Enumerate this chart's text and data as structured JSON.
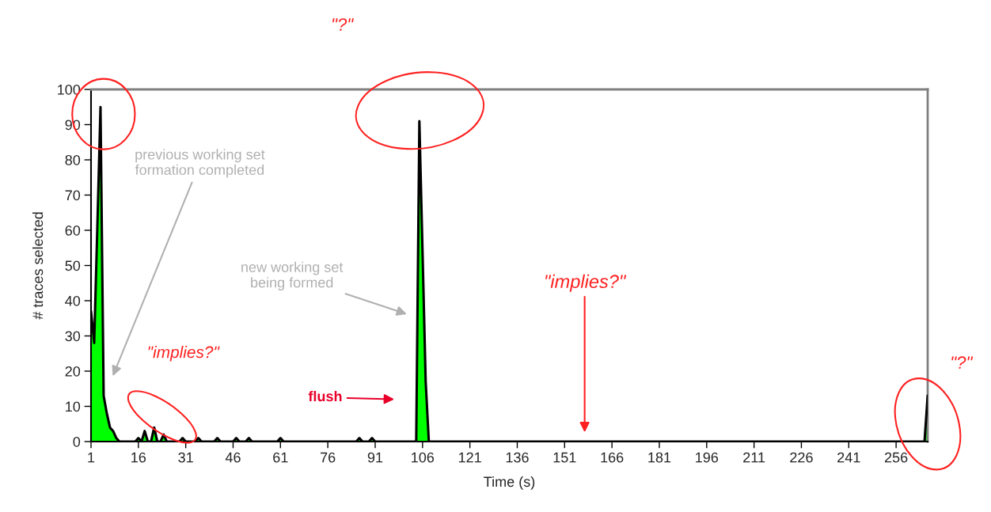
{
  "chart_data": {
    "type": "area",
    "xlabel": "Time (s)",
    "ylabel": "# traces selected",
    "x": [
      1,
      2,
      3,
      4,
      5,
      6,
      7,
      8,
      9,
      10,
      15,
      16,
      17,
      18,
      19,
      20,
      21,
      22,
      23,
      24,
      25,
      29,
      30,
      31,
      34,
      35,
      36,
      40,
      41,
      42,
      46,
      47,
      48,
      50,
      51,
      52,
      60,
      61,
      62,
      85,
      86,
      87,
      89,
      90,
      91,
      104,
      105,
      107,
      108,
      265,
      266
    ],
    "series": [
      {
        "color": "#00ff00",
        "values": [
          37,
          28,
          61,
          95,
          13,
          8,
          4,
          3,
          1,
          0,
          0,
          1,
          0,
          3,
          0,
          0,
          4,
          0,
          0,
          2,
          0,
          0,
          1,
          0,
          0,
          1,
          0,
          0,
          1,
          0,
          0,
          1,
          0,
          0,
          1,
          0,
          0,
          1,
          0,
          0,
          1,
          0,
          0,
          1,
          0,
          0,
          91,
          17,
          0,
          0,
          13
        ]
      }
    ],
    "xlim": [
      1,
      266
    ],
    "ylim": [
      0,
      100
    ],
    "xticks": [
      1,
      16,
      31,
      46,
      61,
      76,
      91,
      106,
      121,
      136,
      151,
      166,
      181,
      196,
      211,
      226,
      241,
      256
    ],
    "yticks": [
      0,
      10,
      20,
      30,
      40,
      50,
      60,
      70,
      80,
      90,
      100
    ],
    "grid": false,
    "legend": false,
    "annotations": [
      "previous working set\nformation completed",
      "new working set\nbeing formed",
      "flush",
      "\"?\"",
      "\"implies?\"",
      "\"implies?\"",
      "\"?\""
    ]
  }
}
